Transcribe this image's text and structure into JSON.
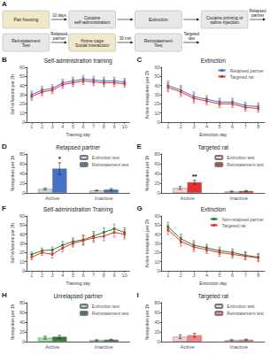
{
  "chart_data": [
    {
      "type": "schema",
      "label": "A",
      "steps": [
        {
          "label": "Pair housing",
          "color": "#f0e8c8"
        },
        {
          "label": "Cocaine\nself-administration",
          "color": "#e8e8e8"
        },
        {
          "label": "Extinction",
          "color": "#e8e8e8"
        },
        {
          "label": "Cocaine priming or\nsaline injection",
          "color": "#e8e8e8"
        },
        {
          "label": "Reinstatement\nTest",
          "color": "#e8e8e8"
        },
        {
          "label": "Home cage\nSocial interaction",
          "color": "#f0e8c8"
        },
        {
          "label": "Reinstatement\nTest",
          "color": "#e8e8e8"
        }
      ],
      "arrows": [
        "10 days",
        null,
        null,
        "Relapsed\npartner",
        "Relapsed\npartner",
        "30 min",
        "Targeted\nrats"
      ]
    },
    {
      "type": "line",
      "label": "B",
      "title": "Self-administration training",
      "xlabel": "Training day",
      "ylabel": "Self-infusions per 2h",
      "x": [
        1,
        2,
        3,
        4,
        5,
        6,
        7,
        8,
        9,
        10
      ],
      "xlim": [
        0.5,
        10.5
      ],
      "xticks": [
        1,
        2,
        3,
        4,
        5,
        6,
        7,
        8,
        9,
        10
      ],
      "ylim": [
        0,
        60
      ],
      "yticks": [
        0,
        10,
        20,
        30,
        40,
        50,
        60
      ],
      "marker": "circle",
      "grid": false,
      "series": [
        {
          "color": "#4472c4",
          "values": [
            30,
            35,
            37,
            43,
            45,
            47,
            46,
            45,
            45,
            44
          ],
          "errors": [
            4,
            4,
            4,
            4,
            4,
            4,
            4,
            4,
            4,
            4
          ]
        },
        {
          "color": "#e8302a",
          "values": [
            28,
            33,
            35,
            41,
            43,
            45,
            44,
            43,
            43,
            42
          ],
          "errors": [
            4,
            4,
            4,
            4,
            4,
            4,
            4,
            4,
            4,
            4
          ]
        }
      ]
    },
    {
      "type": "line",
      "label": "C",
      "title": "Extinction",
      "xlabel": "Extinction day",
      "ylabel": "Active nosepokes per 2h",
      "x": [
        1,
        2,
        3,
        4,
        5,
        6,
        7,
        8
      ],
      "xlim": [
        0.5,
        8.5
      ],
      "xticks": [
        1,
        2,
        3,
        4,
        5,
        6,
        7,
        8
      ],
      "ylim": [
        0,
        60
      ],
      "yticks": [
        0,
        10,
        20,
        30,
        40,
        50,
        60
      ],
      "marker": "circle",
      "grid": false,
      "legend": "upper right",
      "series": [
        {
          "name": "Relapsed partner",
          "color": "#4472c4",
          "values": [
            40,
            35,
            28,
            25,
            22,
            22,
            18,
            17
          ],
          "errors": [
            5,
            5,
            5,
            4,
            4,
            4,
            4,
            4
          ]
        },
        {
          "name": "Targeted rat",
          "color": "#e8302a",
          "values": [
            38,
            33,
            26,
            23,
            20,
            20,
            16,
            15
          ],
          "errors": [
            5,
            5,
            5,
            4,
            4,
            4,
            4,
            4
          ]
        }
      ]
    },
    {
      "type": "bar",
      "label": "D",
      "title": "Relapsed partner",
      "ylabel": "Nosepokes per 1h",
      "categories": [
        "Active",
        "Inactive"
      ],
      "ylim": [
        0,
        80
      ],
      "yticks": [
        0,
        20,
        40,
        60,
        80
      ],
      "grid": false,
      "legend": "upper right",
      "series": [
        {
          "name": "Extinction test",
          "color": "#c8d8f0",
          "values": [
            8,
            5
          ],
          "errors": [
            2,
            1
          ]
        },
        {
          "name": "Reinstatement test",
          "color": "#4472c4",
          "values": [
            50,
            7
          ],
          "errors": [
            12,
            2
          ]
        }
      ],
      "annotations": [
        {
          "text": "*",
          "category": "Active",
          "series": "Reinstatement test"
        }
      ]
    },
    {
      "type": "bar",
      "label": "E",
      "title": "Targeted rat",
      "ylabel": "Nosepokes per 1h",
      "categories": [
        "Active",
        "Inactive"
      ],
      "ylim": [
        0,
        80
      ],
      "yticks": [
        0,
        20,
        40,
        60,
        80
      ],
      "grid": false,
      "legend": "upper right",
      "series": [
        {
          "name": "Extinction test",
          "color": "#ffcccc",
          "values": [
            10,
            3
          ],
          "errors": [
            3,
            1
          ]
        },
        {
          "name": "Reinstatement test",
          "color": "#e8302a",
          "values": [
            22,
            4
          ],
          "errors": [
            4,
            1
          ]
        }
      ],
      "annotations": [
        {
          "text": "**",
          "category": "Active",
          "series": "Reinstatement test"
        }
      ]
    },
    {
      "type": "line",
      "label": "F",
      "title": "Self-administration Training",
      "xlabel": "Training day",
      "ylabel": "Self-infusions per 2h",
      "x": [
        1,
        2,
        3,
        4,
        5,
        6,
        7,
        8,
        9,
        10
      ],
      "xlim": [
        0.5,
        10.5
      ],
      "xticks": [
        1,
        2,
        3,
        4,
        5,
        6,
        7,
        8,
        9,
        10
      ],
      "ylim": [
        0,
        60
      ],
      "yticks": [
        0,
        10,
        20,
        30,
        40,
        50,
        60
      ],
      "marker": "circle",
      "grid": false,
      "series": [
        {
          "color": "#2e7d32",
          "values": [
            18,
            22,
            23,
            28,
            32,
            34,
            38,
            42,
            46,
            42
          ],
          "errors": [
            3,
            3,
            3,
            4,
            4,
            5,
            5,
            5,
            5,
            5
          ]
        },
        {
          "color": "#e8302a",
          "values": [
            15,
            20,
            18,
            25,
            30,
            33,
            36,
            38,
            42,
            40
          ],
          "errors": [
            3,
            3,
            4,
            4,
            4,
            5,
            5,
            5,
            5,
            5
          ]
        }
      ]
    },
    {
      "type": "line",
      "label": "G",
      "title": "Extinction",
      "xlabel": "Extinction day",
      "ylabel": "Active nosepokes per 2h",
      "x": [
        1,
        2,
        3,
        4,
        5,
        6,
        7,
        8
      ],
      "xlim": [
        0.5,
        8.5
      ],
      "xticks": [
        1,
        2,
        3,
        4,
        5,
        6,
        7,
        8
      ],
      "ylim": [
        0,
        60
      ],
      "yticks": [
        0,
        10,
        20,
        30,
        40,
        50,
        60
      ],
      "marker": "circle",
      "grid": false,
      "legend": "upper right",
      "series": [
        {
          "name": "Non-relapsed partner",
          "color": "#2e7d32",
          "values": [
            48,
            35,
            28,
            25,
            22,
            20,
            17,
            15
          ],
          "errors": [
            5,
            5,
            5,
            4,
            4,
            4,
            4,
            4
          ]
        },
        {
          "name": "Targeted rat",
          "color": "#e8302a",
          "values": [
            45,
            32,
            26,
            23,
            20,
            18,
            16,
            14
          ],
          "errors": [
            5,
            5,
            5,
            4,
            4,
            4,
            4,
            4
          ]
        }
      ]
    },
    {
      "type": "bar",
      "label": "H",
      "title": "Unrelapsed partner",
      "ylabel": "Nosepokes per 1h",
      "categories": [
        "Active",
        "Inactive"
      ],
      "ylim": [
        0,
        80
      ],
      "yticks": [
        0,
        20,
        40,
        60,
        80
      ],
      "grid": false,
      "legend": "upper right",
      "series": [
        {
          "name": "Extinction test",
          "color": "#90EE90",
          "values": [
            8,
            3
          ],
          "errors": [
            3,
            1
          ]
        },
        {
          "name": "Reinstatement test",
          "color": "#2e7d32",
          "values": [
            10,
            4
          ],
          "errors": [
            3,
            1
          ]
        }
      ]
    },
    {
      "type": "bar",
      "label": "I",
      "title": "Targeted rat",
      "ylabel": "Nosepokes per 1h",
      "categories": [
        "Active",
        "Inactive"
      ],
      "ylim": [
        0,
        80
      ],
      "yticks": [
        0,
        20,
        40,
        60,
        80
      ],
      "grid": false,
      "legend": "upper right",
      "series": [
        {
          "name": "Extinction test",
          "color": "#ffcccc",
          "values": [
            10,
            3
          ],
          "errors": [
            4,
            1
          ]
        },
        {
          "name": "Reinstatement test",
          "color": "#ff8080",
          "values": [
            13,
            4
          ],
          "errors": [
            4,
            1
          ]
        }
      ]
    }
  ]
}
